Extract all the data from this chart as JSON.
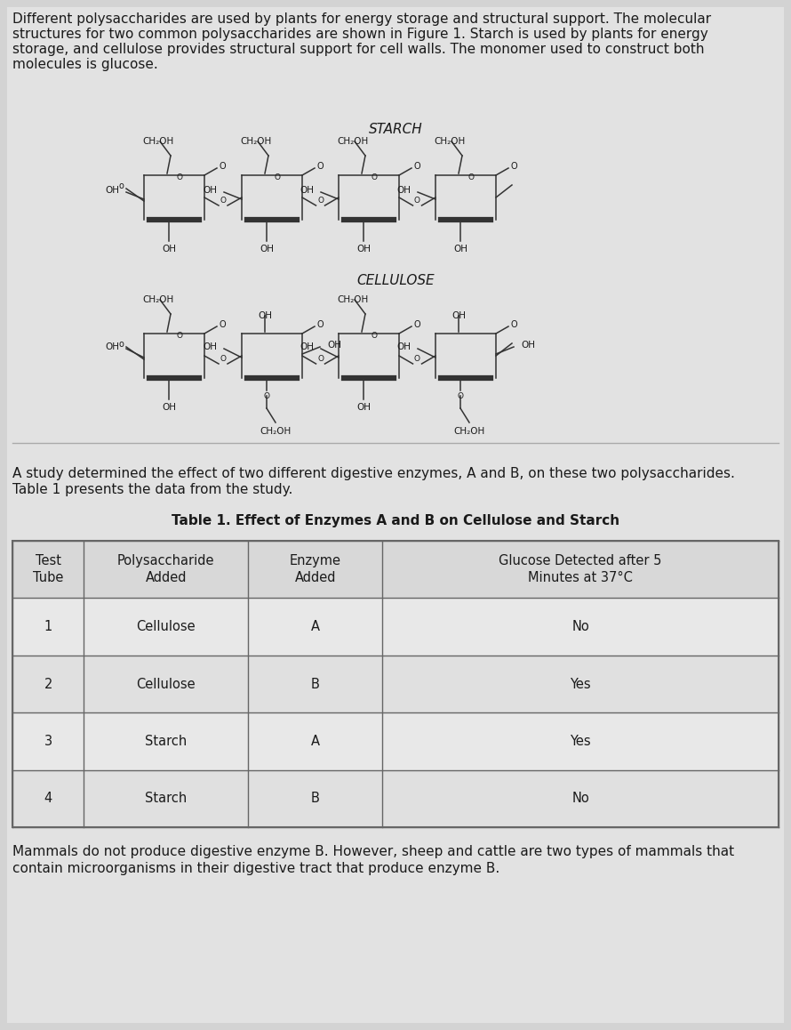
{
  "background_color": "#d3d3d3",
  "content_background": "#e2e2e2",
  "intro_text": "Different polysaccharides are used by plants for energy storage and structural support. The molecular\nstructures for two common polysaccharides are shown in Figure 1. Starch is used by plants for energy\nstorage, and cellulose provides structural support for cell walls. The monomer used to construct both\nmolecules is glucose.",
  "study_text": "A study determined the effect of two different digestive enzymes, A and B, on these two polysaccharides.\nTable 1 presents the data from the study.",
  "table_title": "Table 1. Effect of Enzymes A and B on Cellulose and Starch",
  "table_headers": [
    "Test\nTube",
    "Polysaccharide\nAdded",
    "Enzyme\nAdded",
    "Glucose Detected after 5\nMinutes at 37°C"
  ],
  "table_rows": [
    [
      "1",
      "Cellulose",
      "A",
      "No"
    ],
    [
      "2",
      "Cellulose",
      "B",
      "Yes"
    ],
    [
      "3",
      "Starch",
      "A",
      "Yes"
    ],
    [
      "4",
      "Starch",
      "B",
      "No"
    ]
  ],
  "footer_text": "Mammals do not produce digestive enzyme B. However, sheep and cattle are two types of mammals that\ncontain microorganisms in their digestive tract that produce enzyme B.",
  "starch_label": "STARCH",
  "cellulose_label": "CELLULOSE",
  "text_color": "#1a1a1a",
  "table_border_color": "#666666",
  "line_color": "#333333",
  "intro_fontsize": 11.0,
  "study_fontsize": 11.0,
  "table_title_fontsize": 11.0,
  "table_content_fontsize": 10.5,
  "footer_fontsize": 11.0,
  "fig_width": 8.9,
  "fig_height": 11.58
}
